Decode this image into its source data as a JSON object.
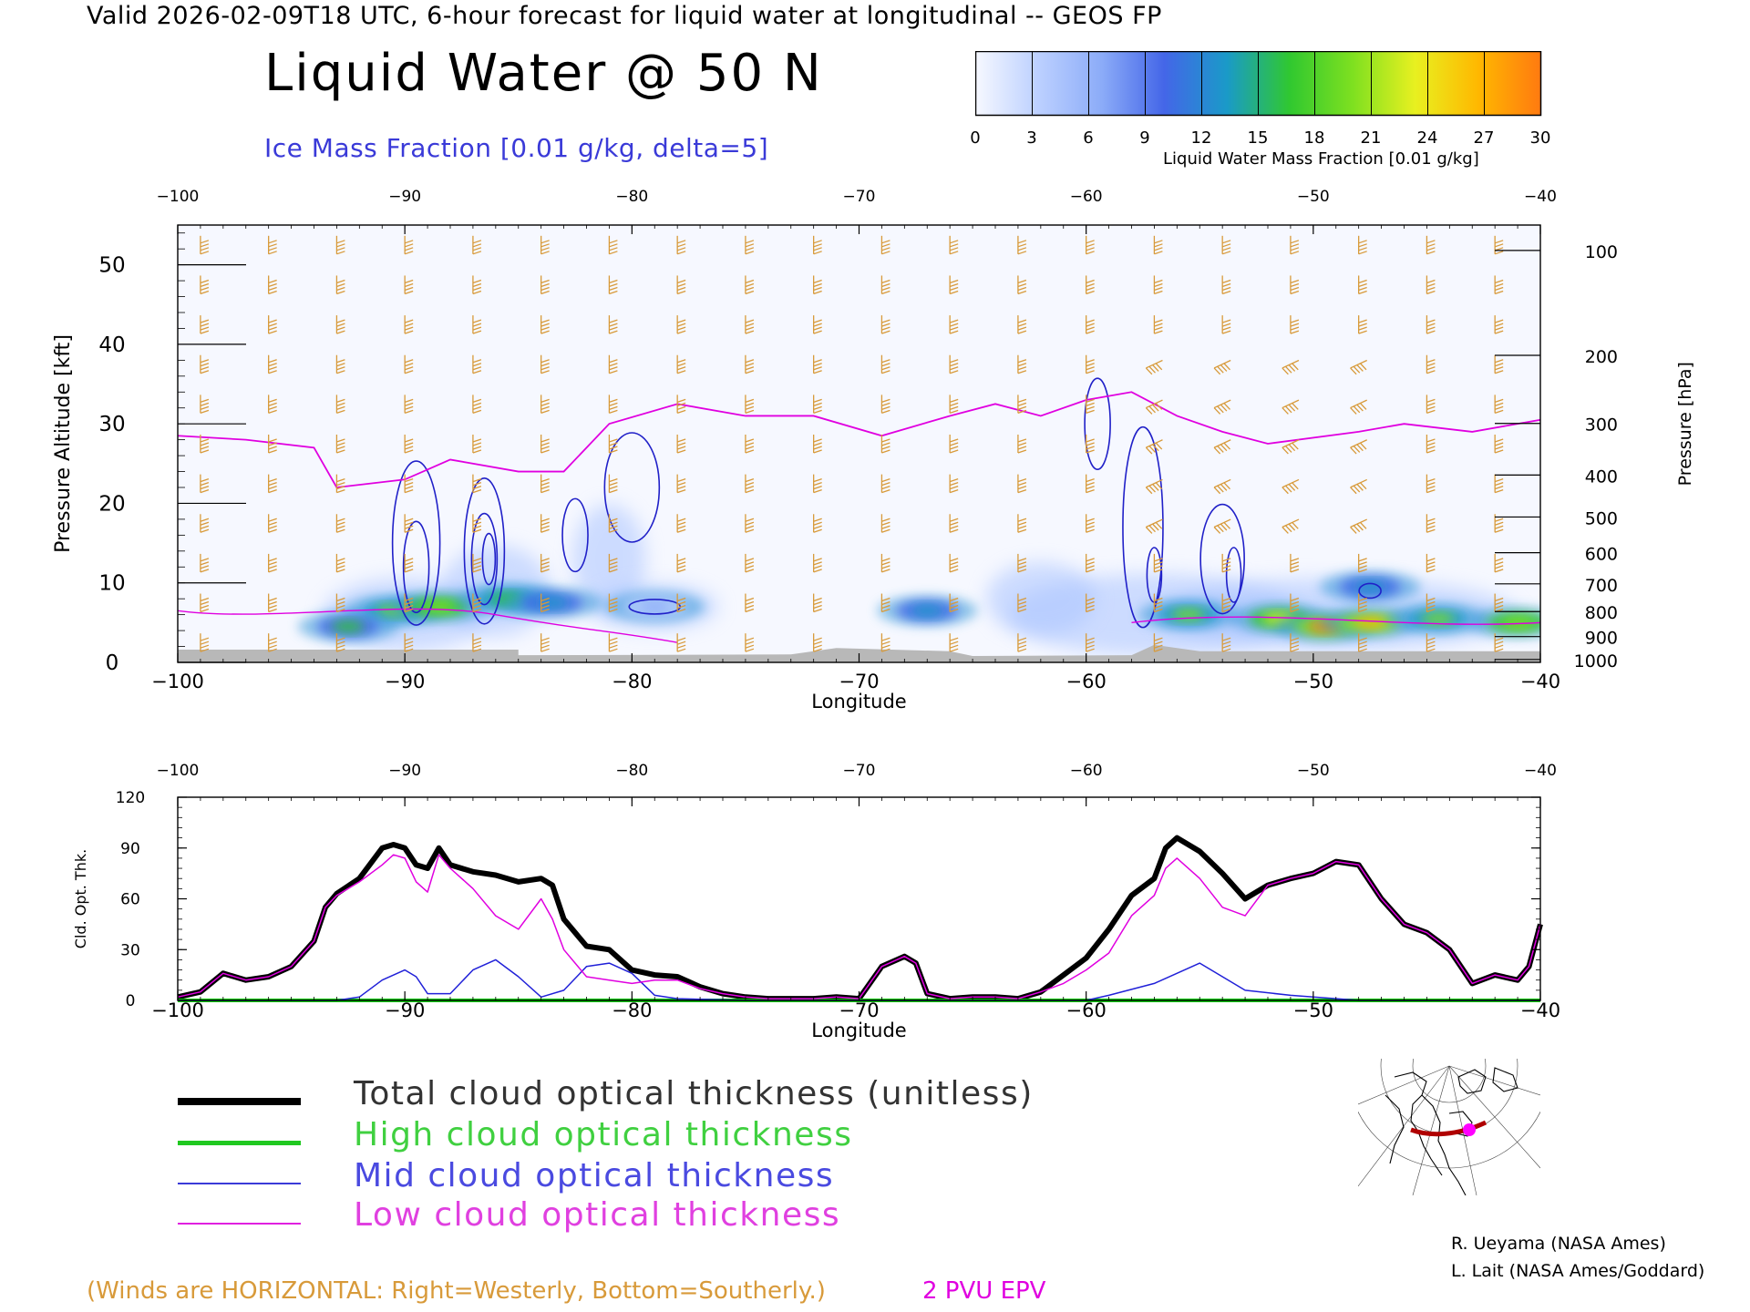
{
  "header": "Valid 2026-02-09T18 UTC, 6-hour forecast for liquid water at longitudinal -- GEOS FP",
  "main_title": "Liquid Water @ 50 N",
  "subtitle": "Ice Mass Fraction [0.01 g/kg, delta=5]",
  "colorbar": {
    "label": "Liquid Water Mass Fraction [0.01 g/kg]",
    "ticks": [
      "0",
      "3",
      "6",
      "9",
      "12",
      "15",
      "18",
      "21",
      "24",
      "27",
      "30"
    ],
    "colors": [
      "#f6f8ff",
      "#bcd0ff",
      "#8cacf8",
      "#4466e8",
      "#1a9ac8",
      "#30c830",
      "#7ee020",
      "#e8f020",
      "#ffb800",
      "#ff7a10"
    ]
  },
  "colors": {
    "wind_barbs": "#d89a3a",
    "ice_contour": "#2020c8",
    "epv": "#e000e0",
    "total": "#000000",
    "high": "#00c800",
    "mid": "#2020d8",
    "low": "#e000e0",
    "terrain": "#b8b8b8"
  },
  "chart_data": [
    {
      "type": "heatmap",
      "title": "Liquid Water @ 50 N",
      "xlabel": "Longitude",
      "ylabel_left": "Pressure Altitude [kft]",
      "ylabel_right": "Pressure [hPa]",
      "xlim": [
        -100,
        -40
      ],
      "ylim": [
        0,
        55
      ],
      "x_ticks": [
        -100,
        -90,
        -80,
        -70,
        -60,
        -50,
        -40
      ],
      "x_tick_labels": [
        "−100",
        "−90",
        "−80",
        "−70",
        "−60",
        "−50",
        "−40"
      ],
      "y_ticks": [
        0,
        10,
        20,
        30,
        40,
        50
      ],
      "pressure_ticks_hpa": [
        100,
        200,
        300,
        400,
        500,
        600,
        700,
        800,
        900,
        1000
      ],
      "liquid_water_blobs": [
        {
          "lon": -90.5,
          "alt": 6.5,
          "value": 18
        },
        {
          "lon": -88.5,
          "alt": 7.0,
          "value": 20
        },
        {
          "lon": -92.5,
          "alt": 4.5,
          "value": 15
        },
        {
          "lon": -85.5,
          "alt": 8.0,
          "value": 16
        },
        {
          "lon": -83.5,
          "alt": 7.5,
          "value": 14
        },
        {
          "lon": -79.0,
          "alt": 7.0,
          "value": 7
        },
        {
          "lon": -67.0,
          "alt": 6.5,
          "value": 13
        },
        {
          "lon": -55.5,
          "alt": 6.0,
          "value": 18
        },
        {
          "lon": -51.5,
          "alt": 5.5,
          "value": 21
        },
        {
          "lon": -49.5,
          "alt": 4.5,
          "value": 27
        },
        {
          "lon": -47.5,
          "alt": 5.0,
          "value": 26
        },
        {
          "lon": -44.5,
          "alt": 5.5,
          "value": 19
        },
        {
          "lon": -47.5,
          "alt": 9.5,
          "value": 14
        },
        {
          "lon": -41.0,
          "alt": 5.0,
          "value": 20
        }
      ],
      "epv_2pvu_altitude_kft": [
        [
          -100,
          28.5
        ],
        [
          -97,
          28
        ],
        [
          -94,
          27
        ],
        [
          -93,
          22
        ],
        [
          -90,
          23
        ],
        [
          -88,
          25.5
        ],
        [
          -85,
          24
        ],
        [
          -83,
          24
        ],
        [
          -81,
          30
        ],
        [
          -78,
          32.5
        ],
        [
          -75,
          31
        ],
        [
          -72,
          31
        ],
        [
          -69,
          28.5
        ],
        [
          -66,
          31
        ],
        [
          -64,
          32.5
        ],
        [
          -62,
          31
        ],
        [
          -60,
          33
        ],
        [
          -58,
          34
        ],
        [
          -56,
          31
        ],
        [
          -54,
          29
        ],
        [
          -52,
          27.5
        ],
        [
          -48,
          29
        ],
        [
          -46,
          30
        ],
        [
          -43,
          29
        ],
        [
          -40,
          30.5
        ]
      ]
    },
    {
      "type": "line",
      "xlabel": "Longitude",
      "ylabel": "Cld. Opt. Thk.",
      "xlim": [
        -100,
        -40
      ],
      "ylim": [
        0,
        120
      ],
      "y_ticks": [
        0,
        30,
        60,
        90,
        120
      ],
      "x_ticks": [
        -100,
        -90,
        -80,
        -70,
        -60,
        -50,
        -40
      ],
      "x_tick_labels": [
        "−100",
        "−90",
        "−80",
        "−70",
        "−60",
        "−50",
        "−40"
      ],
      "series": [
        {
          "name": "Total cloud optical thickness (unitless)",
          "x": [
            -100,
            -99,
            -98,
            -97,
            -96,
            -95,
            -94,
            -93.5,
            -93,
            -92,
            -91,
            -90.5,
            -90,
            -89.5,
            -89,
            -88.5,
            -88,
            -87,
            -86,
            -85,
            -84,
            -83.5,
            -83,
            -82,
            -81,
            -80,
            -79,
            -78,
            -77,
            -76,
            -75,
            -74,
            -73,
            -72,
            -71,
            -70,
            -69,
            -68,
            -67.5,
            -67,
            -66,
            -65,
            -64,
            -63,
            -62,
            -61,
            -60,
            -59,
            -58,
            -57,
            -56.5,
            -56,
            -55,
            -54,
            -53,
            -52,
            -51,
            -50,
            -49,
            -48,
            -47,
            -46,
            -45,
            -44,
            -43,
            -42,
            -41,
            -40.5,
            -40
          ],
          "y": [
            2,
            5,
            16,
            12,
            14,
            20,
            35,
            55,
            63,
            72,
            90,
            92,
            90,
            80,
            78,
            90,
            80,
            76,
            74,
            70,
            72,
            68,
            48,
            32,
            30,
            18,
            15,
            14,
            8,
            4,
            2,
            1,
            1,
            1,
            2,
            1,
            20,
            26,
            22,
            4,
            1,
            2,
            2,
            1,
            5,
            15,
            25,
            42,
            62,
            72,
            90,
            96,
            88,
            75,
            60,
            68,
            72,
            75,
            82,
            80,
            60,
            45,
            40,
            30,
            10,
            15,
            12,
            20,
            45
          ]
        },
        {
          "name": "High cloud optical thickness",
          "x": [
            -100,
            -40
          ],
          "y": [
            0,
            0
          ]
        },
        {
          "name": "Mid cloud optical thickness",
          "x": [
            -100,
            -93,
            -92,
            -91,
            -90,
            -89.5,
            -89,
            -88,
            -87,
            -86,
            -85,
            -84,
            -83,
            -82,
            -81,
            -80,
            -79,
            -78,
            -75,
            -70,
            -60,
            -59,
            -57,
            -55,
            -54,
            -53,
            -51,
            -50,
            -49,
            -48,
            -45,
            -40
          ],
          "y": [
            0,
            0,
            2,
            12,
            18,
            14,
            4,
            4,
            18,
            24,
            14,
            2,
            6,
            20,
            22,
            16,
            3,
            1,
            0,
            0,
            0,
            3,
            10,
            22,
            14,
            6,
            3,
            2,
            1,
            0,
            0,
            0
          ]
        },
        {
          "name": "Low cloud optical thickness",
          "x": [
            -100,
            -99,
            -98,
            -97,
            -96,
            -95,
            -94,
            -93.5,
            -93,
            -92,
            -91,
            -90.5,
            -90,
            -89.5,
            -89,
            -88.5,
            -88,
            -87,
            -86,
            -85,
            -84,
            -83.5,
            -83,
            -82,
            -81,
            -80,
            -79,
            -78,
            -77,
            -76,
            -75,
            -74,
            -73,
            -72,
            -71,
            -70,
            -69,
            -68,
            -67.5,
            -67,
            -66,
            -65,
            -64,
            -63,
            -62,
            -61,
            -60,
            -59,
            -58,
            -57,
            -56.5,
            -56,
            -55,
            -54,
            -53,
            -52,
            -51,
            -50,
            -49,
            -48,
            -47,
            -46,
            -45,
            -44,
            -43,
            -42,
            -41,
            -40.5,
            -40
          ],
          "y": [
            2,
            5,
            16,
            12,
            14,
            20,
            35,
            55,
            62,
            70,
            80,
            86,
            84,
            70,
            64,
            86,
            78,
            66,
            50,
            42,
            60,
            48,
            30,
            14,
            12,
            10,
            12,
            12,
            7,
            4,
            2,
            1,
            1,
            1,
            2,
            1,
            20,
            26,
            22,
            4,
            1,
            2,
            2,
            1,
            5,
            10,
            18,
            28,
            50,
            62,
            78,
            84,
            72,
            55,
            50,
            68,
            72,
            75,
            82,
            80,
            60,
            45,
            40,
            30,
            10,
            15,
            12,
            20,
            45
          ]
        }
      ]
    }
  ],
  "legend": [
    {
      "label": "Total cloud optical thickness (unitless)",
      "color": "#000000"
    },
    {
      "label": "High cloud optical thickness",
      "color": "#20c820"
    },
    {
      "label": "Mid cloud optical thickness",
      "color": "#3a3ad8"
    },
    {
      "label": "Low cloud optical thickness",
      "color": "#e020e0"
    }
  ],
  "credits": [
    "R. Ueyama (NASA Ames)",
    "L. Lait (NASA Ames/Goddard)"
  ],
  "winds_note": "(Winds are HORIZONTAL: Right=Westerly, Bottom=Southerly.)",
  "epv_note": "2 PVU EPV"
}
